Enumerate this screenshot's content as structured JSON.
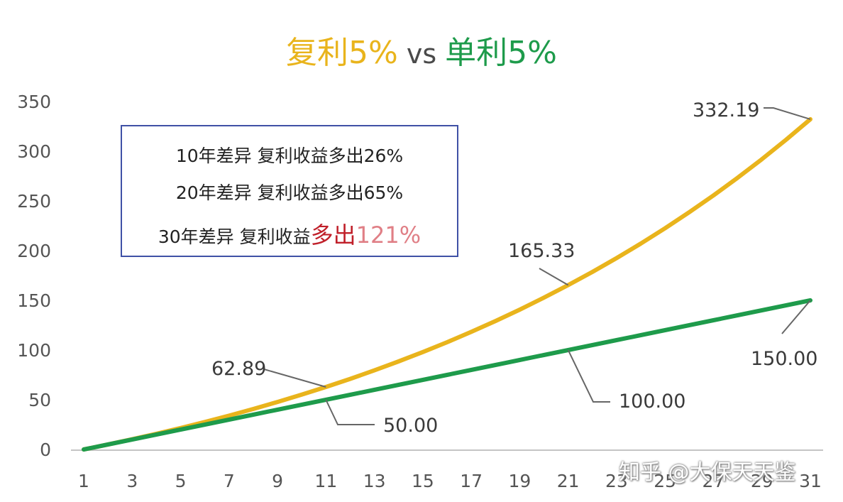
{
  "title": {
    "compound": "复利5%",
    "vs": "vs",
    "simple": "单利5%"
  },
  "info_box": {
    "line1": "10年差异 复利收益多出26%",
    "line2": "20年差异 复利收益多出65%",
    "line3_prefix": "30年差异 复利收益",
    "line3_highlight": "多出",
    "line3_percent": "121%"
  },
  "watermark": "知乎 @大保天天鉴",
  "colors": {
    "compound": "#e9b41c",
    "simple": "#1e9b4b"
  },
  "chart_data": {
    "type": "line",
    "x": [
      1,
      2,
      3,
      4,
      5,
      6,
      7,
      8,
      9,
      10,
      11,
      12,
      13,
      14,
      15,
      16,
      17,
      18,
      19,
      20,
      21,
      22,
      23,
      24,
      25,
      26,
      27,
      28,
      29,
      30,
      31
    ],
    "x_ticks": [
      1,
      3,
      5,
      7,
      9,
      11,
      13,
      15,
      17,
      19,
      21,
      23,
      25,
      27,
      29,
      31
    ],
    "y_ticks": [
      0,
      50,
      100,
      150,
      200,
      250,
      300,
      350
    ],
    "ylim": [
      0,
      350
    ],
    "xlim": [
      1,
      31
    ],
    "grid": false,
    "series": [
      {
        "key": "compound",
        "values": [
          0,
          5.0,
          10.25,
          15.76,
          21.55,
          27.63,
          34.01,
          40.71,
          47.75,
          55.13,
          62.89,
          71.03,
          79.59,
          88.56,
          97.99,
          107.89,
          118.29,
          129.2,
          140.66,
          152.7,
          165.33,
          178.6,
          192.53,
          207.15,
          222.51,
          238.64,
          255.57,
          273.35,
          292.02,
          311.62,
          332.19
        ]
      },
      {
        "key": "simple",
        "values": [
          0,
          5,
          10,
          15,
          20,
          25,
          30,
          35,
          40,
          45,
          50,
          55,
          60,
          65,
          70,
          75,
          80,
          85,
          90,
          95,
          100,
          105,
          110,
          115,
          120,
          125,
          130,
          135,
          140,
          145,
          150
        ]
      }
    ],
    "annotations": [
      {
        "text": "62.89",
        "x": 11,
        "y": 62.89
      },
      {
        "text": "50.00",
        "x": 11,
        "y": 50.0
      },
      {
        "text": "165.33",
        "x": 21,
        "y": 165.33
      },
      {
        "text": "100.00",
        "x": 21,
        "y": 100.0
      },
      {
        "text": "332.19",
        "x": 31,
        "y": 332.19
      },
      {
        "text": "150.00",
        "x": 31,
        "y": 150.0
      }
    ]
  }
}
